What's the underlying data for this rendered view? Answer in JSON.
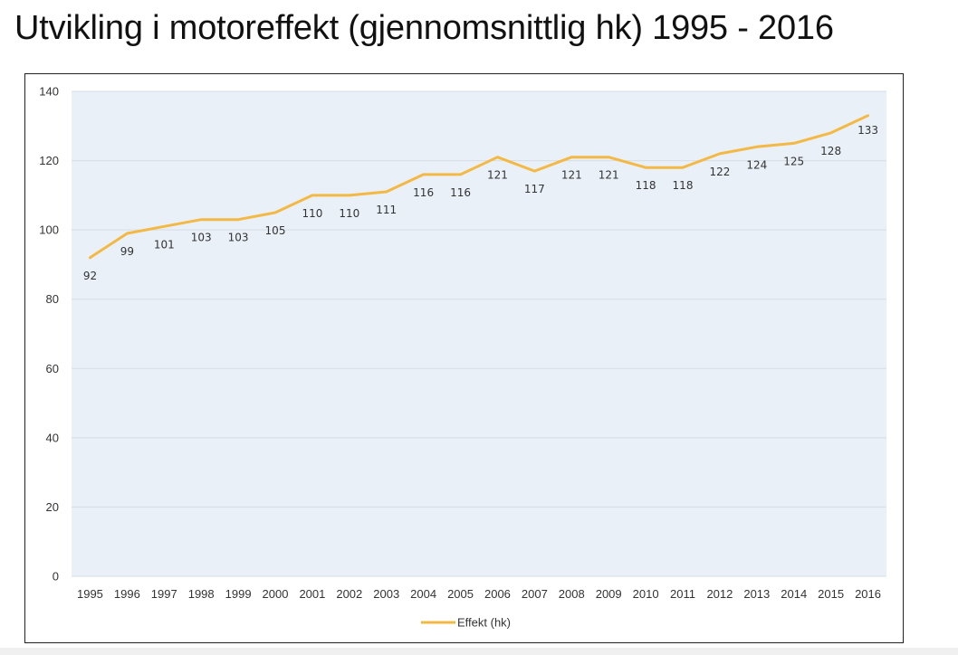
{
  "title": "Utvikling i motoreffekt (gjennomsnittlig hk) 1995 - 2016",
  "colors": {
    "plot_background": "#e9f0f7",
    "gridline": "#d6dde5",
    "series_line": "#f3b944",
    "text": "#333333"
  },
  "chart_data": {
    "type": "line",
    "categories": [
      "1995",
      "1996",
      "1997",
      "1998",
      "1999",
      "2000",
      "2001",
      "2002",
      "2003",
      "2004",
      "2005",
      "2006",
      "2007",
      "2008",
      "2009",
      "2010",
      "2011",
      "2012",
      "2013",
      "2014",
      "2015",
      "2016"
    ],
    "series": [
      {
        "name": "Effekt (hk)",
        "values": [
          92,
          99,
          101,
          103,
          103,
          105,
          110,
          110,
          111,
          116,
          116,
          121,
          117,
          121,
          121,
          118,
          118,
          122,
          124,
          125,
          128,
          133
        ],
        "data_labels": [
          "92",
          "99",
          "101",
          "103",
          "103",
          "105",
          "110",
          "110",
          "111",
          "116",
          "116",
          "121",
          "117",
          "121",
          "121",
          "118",
          "118",
          "122",
          "124",
          "125",
          "128",
          "133"
        ]
      }
    ],
    "ylim": [
      0,
      140
    ],
    "yticks": [
      "0",
      "20",
      "40",
      "60",
      "80",
      "100",
      "120",
      "140"
    ],
    "xlabel": "",
    "ylabel": "",
    "grid": true,
    "legend_position": "bottom"
  }
}
